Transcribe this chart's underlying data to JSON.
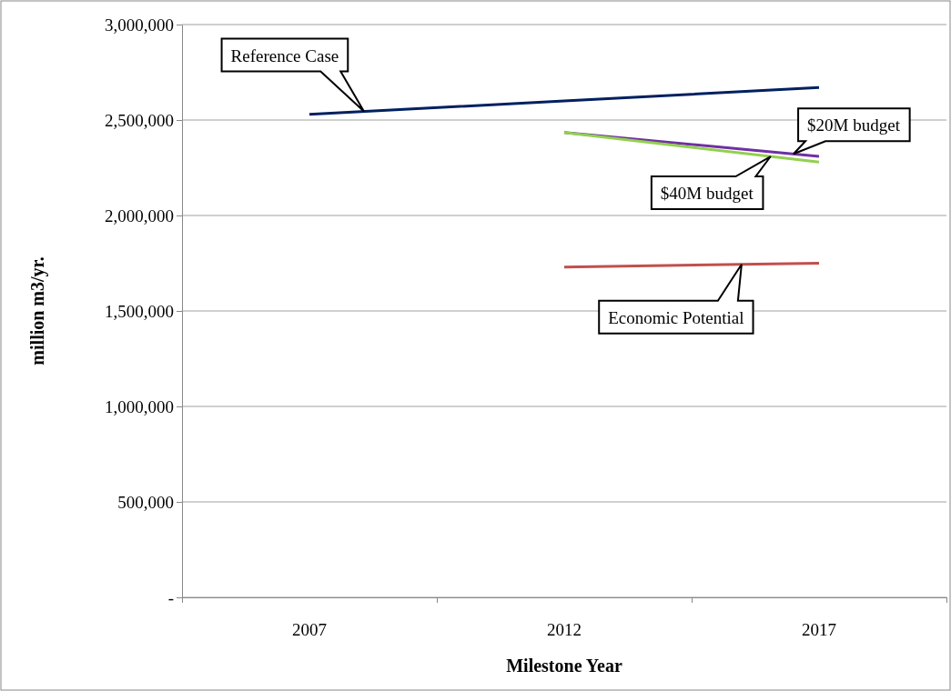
{
  "chart_data": {
    "type": "line",
    "xlabel": "Milestone Year",
    "ylabel": "million m3/yr.",
    "categories": [
      "2007",
      "2012",
      "2017"
    ],
    "series": [
      {
        "name": "Reference Case",
        "color": "#002060",
        "values": [
          2530000,
          2600000,
          2670000
        ]
      },
      {
        "name": "$20M budget",
        "color": "#7030a0",
        "values": [
          null,
          2435000,
          2310000
        ]
      },
      {
        "name": "$40M budget",
        "color": "#92d050",
        "values": [
          null,
          2435000,
          2280000
        ]
      },
      {
        "name": "Economic Potential",
        "color": "#c0504d",
        "values": [
          null,
          1730000,
          1750000
        ]
      }
    ],
    "ylim": [
      0,
      3000000
    ],
    "yticks": [
      {
        "value": 0,
        "label": "-"
      },
      {
        "value": 500000,
        "label": "500,000"
      },
      {
        "value": 1000000,
        "label": "1,000,000"
      },
      {
        "value": 1500000,
        "label": "1,500,000"
      },
      {
        "value": 2000000,
        "label": "2,000,000"
      },
      {
        "value": 2500000,
        "label": "2,500,000"
      },
      {
        "value": 3000000,
        "label": "3,000,000"
      }
    ],
    "grid": "y",
    "legend": false,
    "marker": "none",
    "line_style": "solid"
  }
}
